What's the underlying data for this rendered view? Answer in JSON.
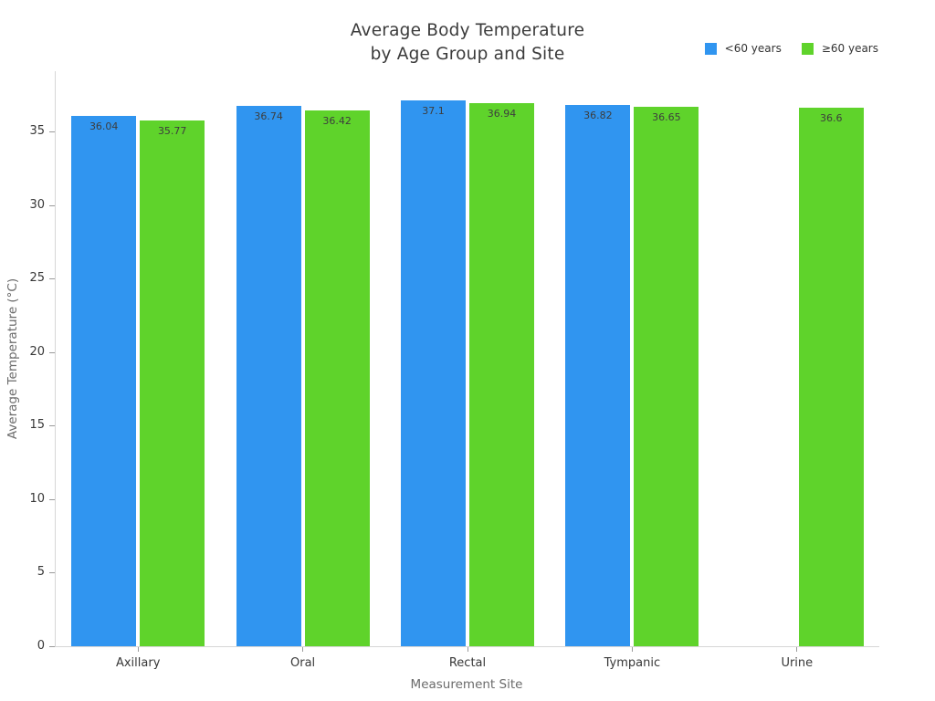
{
  "title": {
    "line1": "Average Body Temperature",
    "line2": "by Age Group and Site"
  },
  "chart_data": {
    "type": "bar",
    "title": "Average Body Temperature by Age Group and Site",
    "categories": [
      "Axillary",
      "Oral",
      "Rectal",
      "Tympanic",
      "Urine"
    ],
    "series": [
      {
        "name": "<60 years",
        "color": "#3095f0",
        "values": [
          36.04,
          36.74,
          37.1,
          36.82,
          null
        ]
      },
      {
        "name": "≥60 years",
        "color": "#5fd32b",
        "values": [
          35.77,
          36.42,
          36.94,
          36.65,
          36.6
        ]
      }
    ],
    "bar_value_labels": [
      "36.04",
      "36.74",
      "37.1",
      "36.82",
      "35.77",
      "36.42",
      "36.94",
      "36.65",
      "36.6"
    ],
    "xlabel": "Measurement Site",
    "ylabel": "Average Temperature (°C)",
    "ylim": [
      0,
      39.1
    ],
    "yticks": [
      0,
      5,
      10,
      15,
      20,
      25,
      30,
      35
    ],
    "grid": false,
    "legend_position": "top-right",
    "plot_background": "#ffffff",
    "axis_color": "#d6d6d6"
  }
}
